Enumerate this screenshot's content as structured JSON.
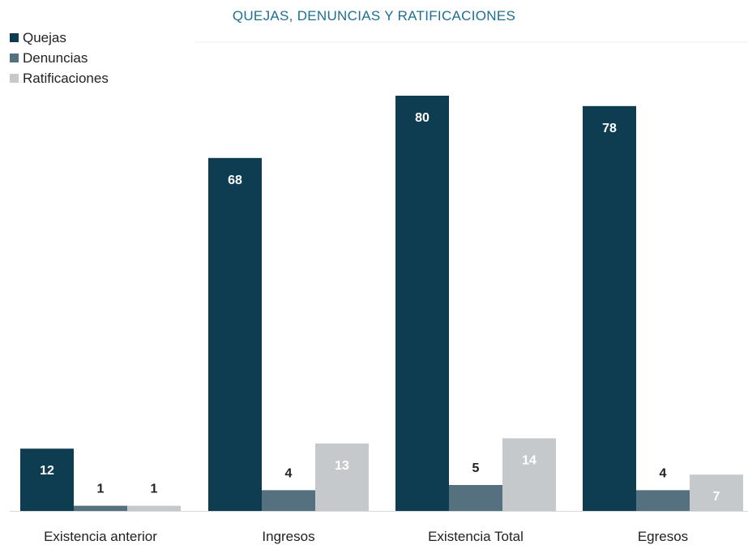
{
  "chart_data": {
    "type": "bar",
    "title": "QUEJAS, DENUNCIAS Y RATIFICACIONES",
    "categories": [
      "Existencia anterior",
      "Ingresos",
      "Existencia Total",
      "Egresos"
    ],
    "series": [
      {
        "name": "Quejas",
        "values": [
          12,
          68,
          80,
          78
        ],
        "color": "#0e3d52"
      },
      {
        "name": "Denuncias",
        "values": [
          1,
          4,
          5,
          4
        ],
        "color": "#55707f"
      },
      {
        "name": "Ratificaciones",
        "values": [
          1,
          13,
          14,
          7
        ],
        "color": "#c6c9cb"
      }
    ],
    "ylim": [
      0,
      80
    ],
    "grid": false,
    "legend": "top-left",
    "xlabel": "",
    "ylabel": ""
  }
}
